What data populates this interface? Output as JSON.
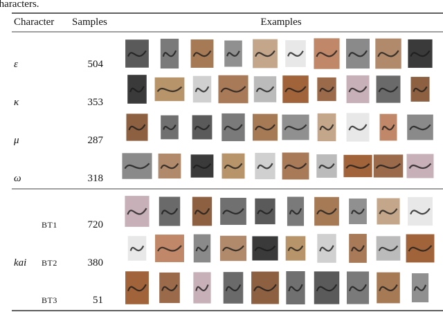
{
  "caption_fragment": "characters.",
  "table": {
    "header": [
      "Character",
      "Samples",
      "Examples"
    ],
    "rows": [
      [
        "ε",
        504
      ],
      [
        "κ",
        353
      ],
      [
        "μ",
        287
      ],
      [
        "ω",
        318
      ]
    ],
    "group": {
      "label": "kai",
      "rows": [
        [
          "BT1",
          720
        ],
        [
          "BT2",
          380
        ],
        [
          "BT3",
          51
        ]
      ]
    }
  }
}
